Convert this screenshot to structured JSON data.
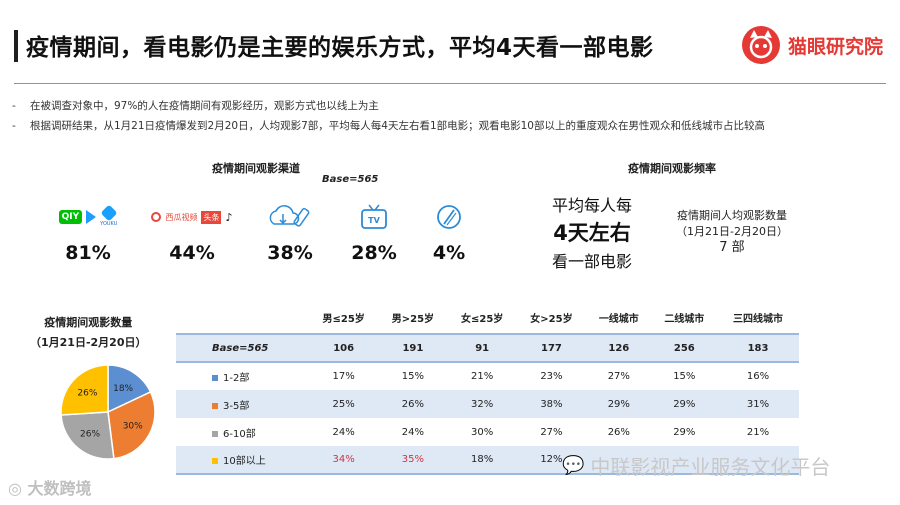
{
  "header": {
    "title": "疫情期间，看电影仍是主要的娱乐方式，平均4天看一部电影",
    "logo_text": "猫眼研究院"
  },
  "bullets": [
    "在被调查对象中，97%的人在疫情期间有观影经历，观影方式也以线上为主",
    "根据调研结果，从1月21日疫情爆发到2月20日，人均观影7部，平均每人每4天左右看1部电影；观看电影10部以上的重度观众在男性观众和低线城市占比较高"
  ],
  "channels": {
    "title": "疫情期间观影渠道",
    "base": "Base=565",
    "items": [
      {
        "icon": "streaming-apps-icon",
        "pct": "81%",
        "labels": [
          "QIY",
          "YOUKU"
        ]
      },
      {
        "icon": "short-video-apps-icon",
        "pct": "44%",
        "labels": [
          "西瓜视频",
          "头条"
        ]
      },
      {
        "icon": "download-icon",
        "pct": "38%"
      },
      {
        "icon": "tv-icon",
        "pct": "28%",
        "labels": [
          "TV"
        ]
      },
      {
        "icon": "disc-icon",
        "pct": "4%"
      }
    ]
  },
  "frequency": {
    "title": "疫情期间观影频率",
    "big_l1": "平均每人每",
    "big_l2": "4天左右",
    "big_l3": "看一部电影",
    "side_l1": "疫情期间人均观影数量",
    "side_l2": "（1月21日-2月20日）",
    "side_value": "7 部"
  },
  "count": {
    "title_l1": "疫情期间观影数量",
    "title_l2": "（1月21日-2月20日）"
  },
  "chart_data": {
    "type": "pie",
    "categories": [
      "1-2部",
      "3-5部",
      "6-10部",
      "10部以上"
    ],
    "values": [
      18,
      30,
      26,
      26
    ],
    "labels": [
      "18%",
      "30%",
      "26%",
      "26%"
    ],
    "colors": [
      "#5b8fd1",
      "#ed7d31",
      "#a5a5a5",
      "#ffc000"
    ]
  },
  "table": {
    "headers": [
      "",
      "男≤25岁",
      "男>25岁",
      "女≤25岁",
      "女>25岁",
      "一线城市",
      "二线城市",
      "三四线城市"
    ],
    "base_label": "Base=565",
    "base": [
      "106",
      "191",
      "91",
      "177",
      "126",
      "256",
      "183"
    ],
    "rows": [
      {
        "label": "1-2部",
        "color": "#5b8fd1",
        "values": [
          "17%",
          "15%",
          "21%",
          "23%",
          "27%",
          "15%",
          "16%"
        ]
      },
      {
        "label": "3-5部",
        "color": "#ed7d31",
        "values": [
          "25%",
          "26%",
          "32%",
          "38%",
          "29%",
          "29%",
          "31%"
        ]
      },
      {
        "label": "6-10部",
        "color": "#a5a5a5",
        "values": [
          "24%",
          "24%",
          "30%",
          "27%",
          "26%",
          "29%",
          "21%"
        ]
      },
      {
        "label": "10部以上",
        "color": "#ffc000",
        "values": [
          "34%",
          "35%",
          "18%",
          "12%",
          "",
          "",
          ""
        ]
      }
    ],
    "highlight_color": "#d0353f"
  },
  "watermarks": {
    "left": "大数跨境",
    "right": "中联影视产业服务文化平台"
  }
}
